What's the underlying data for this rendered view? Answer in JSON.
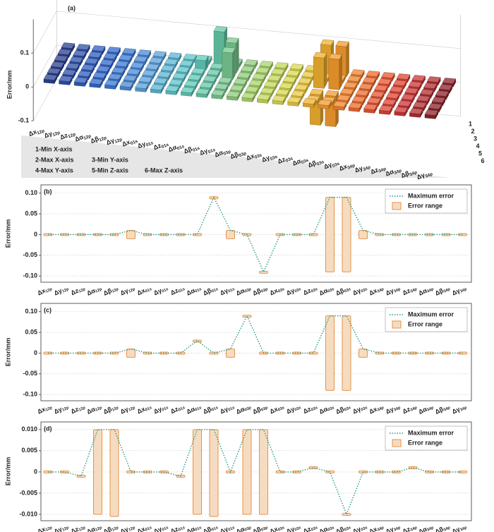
{
  "chart_data": [
    {
      "type": "bar3d",
      "panel_label": "(a)",
      "z_label": "Error/mm",
      "categories": [
        {
          "symbol": "Δx",
          "subscript": "12p"
        },
        {
          "symbol": "Δy",
          "subscript": "12p"
        },
        {
          "symbol": "Δz",
          "subscript": "12p"
        },
        {
          "symbol": "Δα",
          "subscript": "12p"
        },
        {
          "symbol": "Δβ",
          "subscript": "12p"
        },
        {
          "symbol": "Δγ",
          "subscript": "12p"
        },
        {
          "symbol": "Δx",
          "subscript": "01s"
        },
        {
          "symbol": "Δy",
          "subscript": "01s"
        },
        {
          "symbol": "Δz",
          "subscript": "01s"
        },
        {
          "symbol": "Δα",
          "subscript": "01s"
        },
        {
          "symbol": "Δβ",
          "subscript": "01s"
        },
        {
          "symbol": "Δγ",
          "subscript": "01s"
        },
        {
          "symbol": "Δα",
          "subscript": "03p"
        },
        {
          "symbol": "Δβ",
          "subscript": "03p"
        },
        {
          "symbol": "Δx",
          "subscript": "03s"
        },
        {
          "symbol": "Δy",
          "subscript": "03s"
        },
        {
          "symbol": "Δz",
          "subscript": "03s"
        },
        {
          "symbol": "Δα",
          "subscript": "03s"
        },
        {
          "symbol": "Δβ",
          "subscript": "03s"
        },
        {
          "symbol": "Δγ",
          "subscript": "03s"
        },
        {
          "symbol": "Δx",
          "subscript": "34p"
        },
        {
          "symbol": "Δy",
          "subscript": "34p"
        },
        {
          "symbol": "Δz",
          "subscript": "34p"
        },
        {
          "symbol": "Δα",
          "subscript": "34p"
        },
        {
          "symbol": "Δβ",
          "subscript": "34p"
        },
        {
          "symbol": "Δγ",
          "subscript": "34p"
        }
      ],
      "colors": [
        "#2a3f8f",
        "#2d4fa8",
        "#2f5cbf",
        "#3168cc",
        "#3a78d4",
        "#4a8ad8",
        "#5aa0dc",
        "#5bb5d6",
        "#5cc4cc",
        "#5ec9b8",
        "#66c8a8",
        "#78c890",
        "#8fcc7a",
        "#a8d46a",
        "#c2d85a",
        "#d8d84e",
        "#e8c840",
        "#f0b030",
        "#f39a2c",
        "#f2822a",
        "#ee6a2c",
        "#e85430",
        "#de4232",
        "#cc3434",
        "#b02c30",
        "#8c2228"
      ],
      "row_ticks": [
        1,
        2,
        3,
        4,
        5,
        6
      ],
      "series": [
        {
          "name": "1-Min X-axis",
          "values": [
            0.01,
            0.01,
            0.01,
            0.01,
            0.01,
            0.01,
            0.01,
            0.01,
            0.01,
            0.01,
            0.1,
            0.01,
            0.01,
            0.01,
            0.01,
            0.01,
            0.01,
            0.09,
            0.09,
            0.01,
            0.01,
            0.01,
            0.01,
            0.01,
            0.01,
            0.01
          ]
        },
        {
          "name": "2-Max X-axis",
          "values": [
            0.01,
            0.01,
            0.01,
            0.01,
            0.01,
            0.01,
            0.01,
            0.01,
            0.01,
            0.03,
            0.01,
            0.09,
            0.01,
            0.01,
            0.01,
            0.01,
            0.01,
            0.01,
            0.01,
            0.01,
            0.01,
            0.01,
            0.01,
            0.01,
            0.01,
            0.01
          ]
        },
        {
          "name": "3-Min Y-axis",
          "values": [
            0.01,
            0.01,
            0.01,
            0.01,
            0.01,
            0.01,
            0.01,
            0.01,
            0.01,
            0.01,
            0.01,
            0.08,
            0.01,
            0.01,
            0.01,
            0.01,
            0.01,
            0.09,
            0.09,
            0.01,
            0.01,
            0.01,
            0.01,
            0.01,
            0.01,
            0.01
          ]
        },
        {
          "name": "4-Max Y-axis",
          "values": [
            0.01,
            0.01,
            0.01,
            0.01,
            0.01,
            0.01,
            0.01,
            0.01,
            0.01,
            0.01,
            0.01,
            0.01,
            0.01,
            0.01,
            0.01,
            0.01,
            0.01,
            -0.09,
            -0.09,
            0.01,
            0.01,
            0.01,
            0.01,
            0.01,
            0.01,
            0.01
          ]
        },
        {
          "name": "5-Min Z-axis",
          "values": [
            0.01,
            0.01,
            0.01,
            0.01,
            0.01,
            0.01,
            0.01,
            0.01,
            0.01,
            0.01,
            0.01,
            0.01,
            0.01,
            0.01,
            0.01,
            0.01,
            0.01,
            -0.01,
            -0.01,
            0.01,
            0.01,
            0.01,
            0.01,
            0.01,
            0.01,
            0.01
          ]
        },
        {
          "name": "6-Max Z-axis",
          "values": [
            0.01,
            0.01,
            0.01,
            0.01,
            0.01,
            0.01,
            0.01,
            0.01,
            0.01,
            0.01,
            0.01,
            0.01,
            0.01,
            0.01,
            0.01,
            0.01,
            0.01,
            0.01,
            0.01,
            0.01,
            0.01,
            0.01,
            0.01,
            0.01,
            0.01,
            0.01
          ]
        }
      ],
      "zlim": [
        -0.1,
        0.2
      ],
      "zticks": [
        -0.1,
        0,
        0.1
      ]
    },
    {
      "type": "errorline",
      "panel_label": "(b)",
      "y_label": "Error/mm",
      "categories": [
        {
          "symbol": "Δx",
          "subscript": "12p"
        },
        {
          "symbol": "Δy",
          "subscript": "12p"
        },
        {
          "symbol": "Δz",
          "subscript": "12p"
        },
        {
          "symbol": "Δα",
          "subscript": "12p"
        },
        {
          "symbol": "Δβ",
          "subscript": "12p"
        },
        {
          "symbol": "Δγ",
          "subscript": "12p"
        },
        {
          "symbol": "Δx",
          "subscript": "01s"
        },
        {
          "symbol": "Δy",
          "subscript": "01s"
        },
        {
          "symbol": "Δz",
          "subscript": "01s"
        },
        {
          "symbol": "Δα",
          "subscript": "01s"
        },
        {
          "symbol": "Δβ",
          "subscript": "01s"
        },
        {
          "symbol": "Δγ",
          "subscript": "01s"
        },
        {
          "symbol": "Δα",
          "subscript": "03p"
        },
        {
          "symbol": "Δβ",
          "subscript": "03p"
        },
        {
          "symbol": "Δx",
          "subscript": "03s"
        },
        {
          "symbol": "Δy",
          "subscript": "03s"
        },
        {
          "symbol": "Δz",
          "subscript": "03s"
        },
        {
          "symbol": "Δα",
          "subscript": "03s"
        },
        {
          "symbol": "Δβ",
          "subscript": "03s"
        },
        {
          "symbol": "Δγ",
          "subscript": "03s"
        },
        {
          "symbol": "Δx",
          "subscript": "34p"
        },
        {
          "symbol": "Δy",
          "subscript": "34p"
        },
        {
          "symbol": "Δz",
          "subscript": "34p"
        },
        {
          "symbol": "Δα",
          "subscript": "34p"
        },
        {
          "symbol": "Δβ",
          "subscript": "34p"
        },
        {
          "symbol": "Δγ",
          "subscript": "34p"
        }
      ],
      "series": [
        {
          "name": "Maximum error",
          "color": "#2a9a8a",
          "values": [
            0,
            0,
            0,
            0,
            0,
            0.01,
            0,
            0,
            0,
            0,
            0.09,
            0.01,
            0,
            -0.09,
            0,
            0,
            0,
            0.09,
            0.09,
            0.01,
            0,
            0,
            0,
            0,
            0,
            0
          ]
        }
      ],
      "ranges": {
        "name": "Error range",
        "color": "#e8924a",
        "fill": "#f5dcc0",
        "low": [
          0,
          0,
          0,
          0,
          0,
          -0.01,
          0,
          0,
          0,
          0,
          0.088,
          -0.01,
          0,
          -0.092,
          0,
          0,
          0,
          -0.09,
          -0.09,
          -0.01,
          0,
          0,
          0,
          0,
          0,
          0
        ],
        "high": [
          0,
          0,
          0,
          0,
          0,
          0.01,
          0,
          0,
          0,
          0,
          0.09,
          0.01,
          0,
          -0.09,
          0,
          0,
          0,
          0.09,
          0.09,
          0.01,
          0,
          0,
          0,
          0,
          0,
          0
        ]
      },
      "ylim": [
        -0.115,
        0.12
      ],
      "yticks": [
        {
          "value": -0.1,
          "label": "-0.10"
        },
        {
          "value": -0.05,
          "label": "-0.05"
        },
        0,
        {
          "value": 0.05,
          "label": "0.05"
        },
        {
          "value": 0.1,
          "label": "0.10"
        }
      ],
      "grid": true,
      "legend": "upper right"
    },
    {
      "type": "errorline",
      "panel_label": "(c)",
      "y_label": "Error/mm",
      "categories": [
        {
          "symbol": "Δx",
          "subscript": "12p"
        },
        {
          "symbol": "Δy",
          "subscript": "12p"
        },
        {
          "symbol": "Δz",
          "subscript": "12p"
        },
        {
          "symbol": "Δα",
          "subscript": "12p"
        },
        {
          "symbol": "Δβ",
          "subscript": "12p"
        },
        {
          "symbol": "Δγ",
          "subscript": "12p"
        },
        {
          "symbol": "Δx",
          "subscript": "01s"
        },
        {
          "symbol": "Δy",
          "subscript": "01s"
        },
        {
          "symbol": "Δz",
          "subscript": "01s"
        },
        {
          "symbol": "Δα",
          "subscript": "01s"
        },
        {
          "symbol": "Δβ",
          "subscript": "01s"
        },
        {
          "symbol": "Δγ",
          "subscript": "01s"
        },
        {
          "symbol": "Δα",
          "subscript": "03p"
        },
        {
          "symbol": "Δβ",
          "subscript": "03p"
        },
        {
          "symbol": "Δx",
          "subscript": "03s"
        },
        {
          "symbol": "Δy",
          "subscript": "03s"
        },
        {
          "symbol": "Δz",
          "subscript": "03s"
        },
        {
          "symbol": "Δα",
          "subscript": "03s"
        },
        {
          "symbol": "Δβ",
          "subscript": "03s"
        },
        {
          "symbol": "Δγ",
          "subscript": "03s"
        },
        {
          "symbol": "Δx",
          "subscript": "34p"
        },
        {
          "symbol": "Δy",
          "subscript": "34p"
        },
        {
          "symbol": "Δz",
          "subscript": "34p"
        },
        {
          "symbol": "Δα",
          "subscript": "34p"
        },
        {
          "symbol": "Δβ",
          "subscript": "34p"
        },
        {
          "symbol": "Δγ",
          "subscript": "34p"
        }
      ],
      "series": [
        {
          "name": "Maximum error",
          "color": "#2a9a8a",
          "values": [
            0,
            0,
            0,
            0,
            0,
            0.01,
            0,
            0,
            0,
            0.03,
            0,
            0.01,
            0.09,
            0,
            0,
            0,
            0,
            0.09,
            0.09,
            0.01,
            0,
            0,
            0,
            0,
            0,
            0
          ]
        }
      ],
      "ranges": {
        "name": "Error range",
        "color": "#e8924a",
        "fill": "#f5dcc0",
        "low": [
          0,
          0,
          0,
          0,
          0,
          -0.01,
          0,
          0,
          0,
          0.028,
          0,
          -0.01,
          0.088,
          0,
          0,
          0,
          0,
          -0.09,
          -0.09,
          -0.01,
          0,
          0,
          0,
          0,
          0,
          0
        ],
        "high": [
          0,
          0,
          0,
          0,
          0,
          0.01,
          0,
          0,
          0,
          0.03,
          0,
          0.01,
          0.09,
          0,
          0,
          0,
          0,
          0.09,
          0.09,
          0.01,
          0,
          0,
          0,
          0,
          0,
          0
        ]
      },
      "ylim": [
        -0.115,
        0.12
      ],
      "yticks": [
        {
          "value": -0.1,
          "label": "-0.10"
        },
        {
          "value": -0.05,
          "label": "-0.05"
        },
        0,
        {
          "value": 0.05,
          "label": "0.05"
        },
        {
          "value": 0.1,
          "label": "0.10"
        }
      ],
      "grid": true,
      "legend": "upper right"
    },
    {
      "type": "errorline",
      "panel_label": "(d)",
      "y_label": "Error/mm",
      "categories": [
        {
          "symbol": "Δx",
          "subscript": "12p"
        },
        {
          "symbol": "Δy",
          "subscript": "12p"
        },
        {
          "symbol": "Δz",
          "subscript": "12p"
        },
        {
          "symbol": "Δα",
          "subscript": "12p"
        },
        {
          "symbol": "Δβ",
          "subscript": "12p"
        },
        {
          "symbol": "Δγ",
          "subscript": "12p"
        },
        {
          "symbol": "Δx",
          "subscript": "01s"
        },
        {
          "symbol": "Δy",
          "subscript": "01s"
        },
        {
          "symbol": "Δz",
          "subscript": "01s"
        },
        {
          "symbol": "Δα",
          "subscript": "01s"
        },
        {
          "symbol": "Δβ",
          "subscript": "01s"
        },
        {
          "symbol": "Δγ",
          "subscript": "01s"
        },
        {
          "symbol": "Δα",
          "subscript": "03p"
        },
        {
          "symbol": "Δβ",
          "subscript": "03p"
        },
        {
          "symbol": "Δx",
          "subscript": "03s"
        },
        {
          "symbol": "Δy",
          "subscript": "03s"
        },
        {
          "symbol": "Δz",
          "subscript": "03s"
        },
        {
          "symbol": "Δα",
          "subscript": "03s"
        },
        {
          "symbol": "Δβ",
          "subscript": "03s"
        },
        {
          "symbol": "Δγ",
          "subscript": "03s"
        },
        {
          "symbol": "Δx",
          "subscript": "34p"
        },
        {
          "symbol": "Δy",
          "subscript": "34p"
        },
        {
          "symbol": "Δz",
          "subscript": "34p"
        },
        {
          "symbol": "Δα",
          "subscript": "34p"
        },
        {
          "symbol": "Δβ",
          "subscript": "34p"
        },
        {
          "symbol": "Δγ",
          "subscript": "34p"
        }
      ],
      "series": [
        {
          "name": "Maximum error",
          "color": "#2a9a8a",
          "values": [
            0,
            0,
            -0.001,
            0.01,
            0.01,
            0,
            0,
            0,
            -0.001,
            0.01,
            0.01,
            0,
            0.01,
            0.01,
            0,
            0,
            0.001,
            0,
            -0.01,
            0,
            0,
            0,
            0.001,
            0,
            0,
            0
          ]
        }
      ],
      "ranges": {
        "name": "Error range",
        "color": "#e8924a",
        "fill": "#f5dcc0",
        "low": [
          0,
          0,
          -0.001,
          -0.01,
          -0.0105,
          0,
          0,
          0,
          -0.001,
          -0.01,
          -0.0105,
          0,
          -0.01,
          -0.01,
          0,
          0,
          0.001,
          0,
          -0.01,
          0,
          0,
          0,
          0.001,
          0,
          0,
          0
        ],
        "high": [
          0,
          0,
          -0.001,
          0.01,
          0.01,
          0,
          0,
          0,
          -0.001,
          0.01,
          0.01,
          0,
          0.01,
          0.01,
          0,
          0,
          0.001,
          0,
          -0.01,
          0,
          0,
          0,
          0.001,
          0,
          0,
          0
        ]
      },
      "ylim": [
        -0.0115,
        0.0118
      ],
      "yticks": [
        {
          "value": -0.01,
          "label": "-0.010"
        },
        {
          "value": -0.005,
          "label": "-0.005"
        },
        0,
        {
          "value": 0.005,
          "label": "0.005"
        },
        {
          "value": 0.01,
          "label": "0.010"
        }
      ],
      "grid": true,
      "legend": "upper right"
    }
  ]
}
